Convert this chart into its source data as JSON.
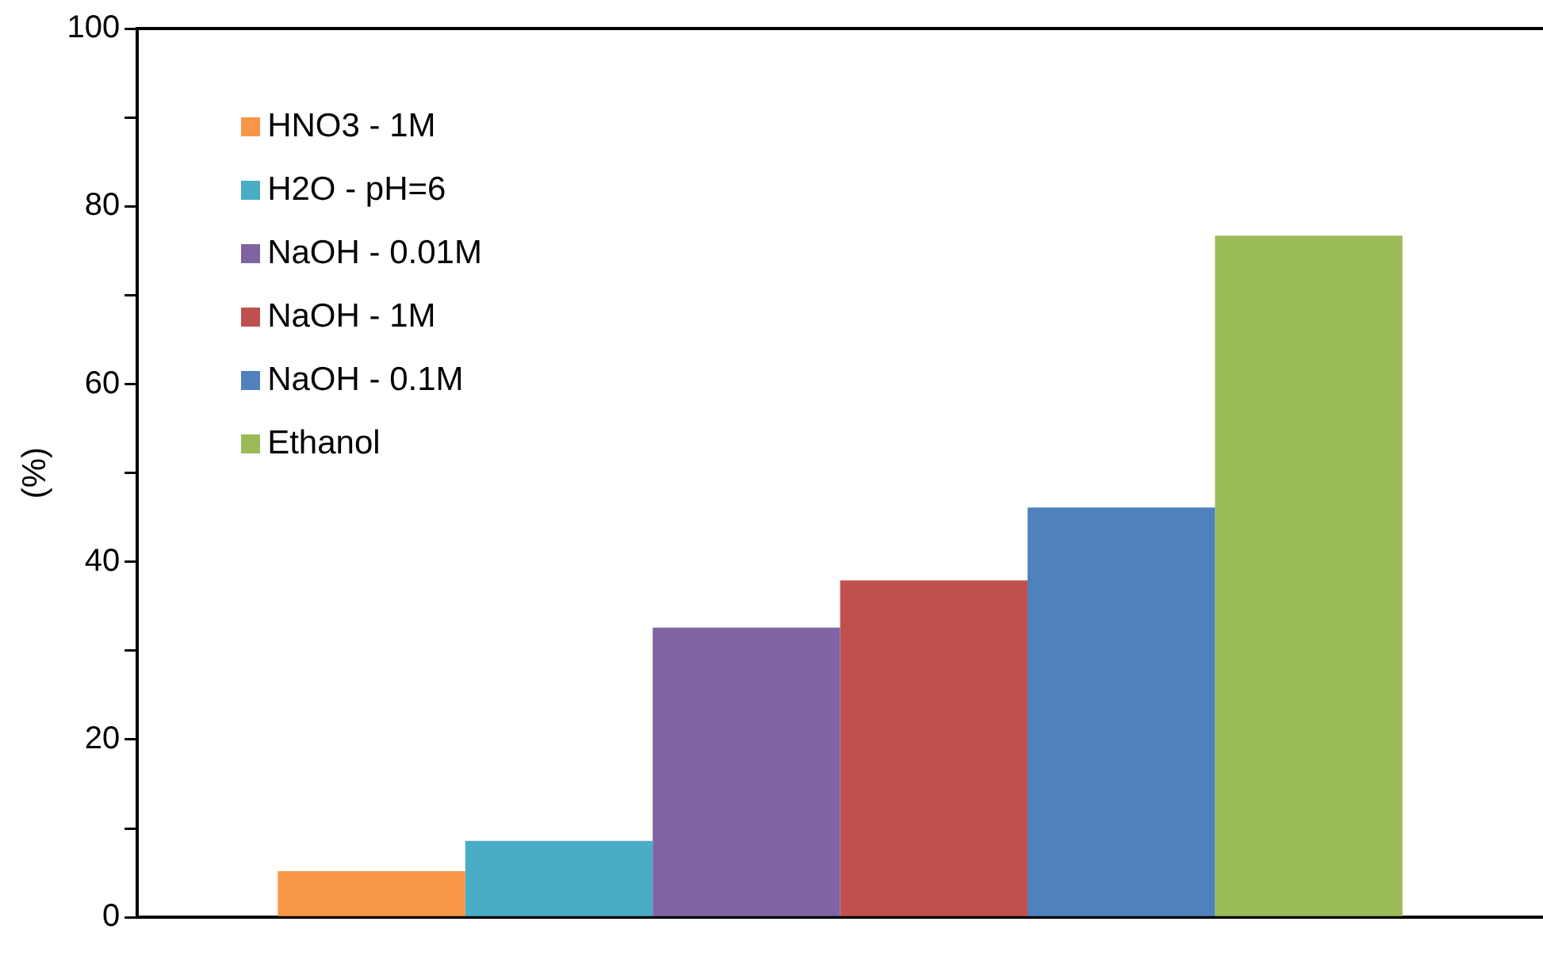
{
  "chart_data": {
    "type": "bar",
    "ylabel": "(%)",
    "categories": [
      null
    ],
    "series": [
      {
        "name": "HNO3 - 1M",
        "color": "#f79646",
        "values": [
          5.2
        ]
      },
      {
        "name": "H2O - pH=6",
        "color": "#4bacc6",
        "values": [
          8.6
        ]
      },
      {
        "name": "NaOH - 0.01M",
        "color": "#8064a2",
        "values": [
          32.6
        ]
      },
      {
        "name": "NaOH - 1M",
        "color": "#c0504d",
        "values": [
          37.9
        ]
      },
      {
        "name": "NaOH - 0.1M",
        "color": "#4f81bd",
        "values": [
          46.1
        ]
      },
      {
        "name": "Ethanol",
        "color": "#9bbb59",
        "values": [
          76.7
        ]
      }
    ],
    "ylim": [
      0,
      100
    ],
    "yticks": [
      0,
      {
        "value": 10,
        "label": null
      },
      20,
      {
        "value": 30,
        "label": null
      },
      40,
      {
        "value": 50,
        "label": null
      },
      60,
      {
        "value": 70,
        "label": null
      },
      80,
      {
        "value": 90,
        "label": null
      },
      100
    ],
    "grid": false,
    "legend": "top left"
  }
}
